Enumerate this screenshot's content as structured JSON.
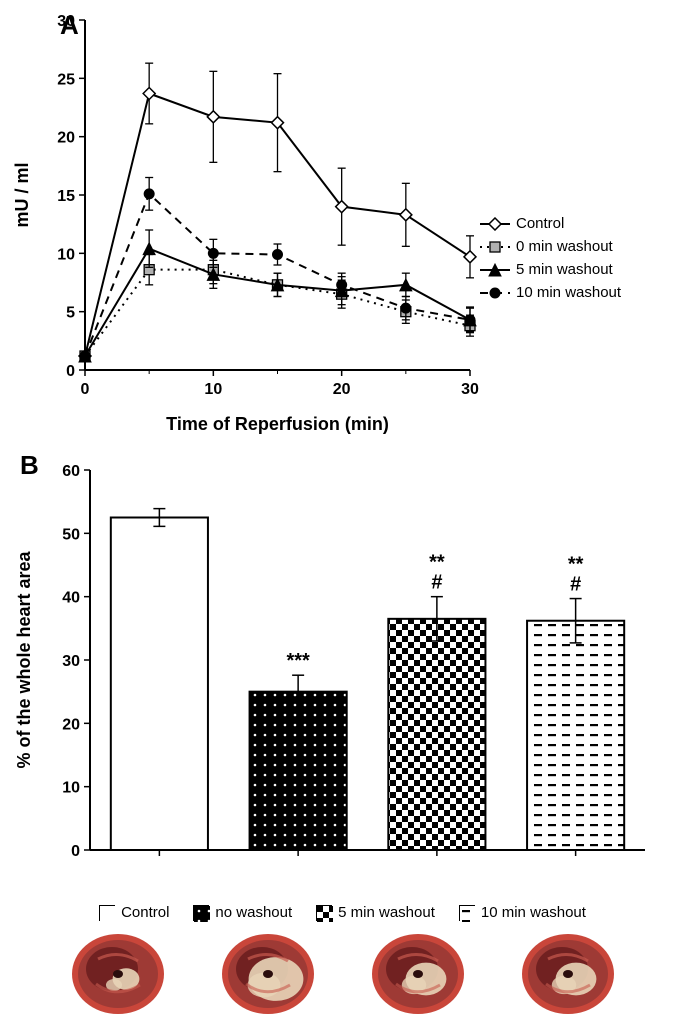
{
  "panelA": {
    "label": "A",
    "type": "line",
    "xlabel": "Time of Reperfusion (min)",
    "ylabel": "mU / ml",
    "xlim": [
      0,
      30
    ],
    "ylim": [
      0,
      30
    ],
    "xtick_step": 10,
    "xticks": [
      0,
      10,
      20,
      30
    ],
    "yticks": [
      0,
      5,
      10,
      15,
      20,
      25,
      30
    ],
    "label_fontsize": 18,
    "tick_fontsize": 16,
    "background_color": "#ffffff",
    "axis_color": "#000000",
    "series": [
      {
        "name": "Control",
        "marker": "diamond-open",
        "marker_fill": "#ffffff",
        "marker_stroke": "#000000",
        "line_style": "solid",
        "line_color": "#000000",
        "line_width": 2,
        "x": [
          0,
          5,
          10,
          15,
          20,
          25,
          30
        ],
        "y": [
          1.2,
          23.7,
          21.7,
          21.2,
          14.0,
          13.3,
          9.7
        ],
        "err": [
          0,
          2.6,
          3.9,
          4.2,
          3.3,
          2.7,
          1.8
        ]
      },
      {
        "name": "0 min washout",
        "marker": "square",
        "marker_fill": "#b0b0b0",
        "marker_stroke": "#000000",
        "line_style": "dotted",
        "line_color": "#000000",
        "line_width": 2,
        "x": [
          0,
          5,
          10,
          15,
          20,
          25,
          30
        ],
        "y": [
          1.2,
          8.6,
          8.6,
          7.3,
          6.5,
          5.0,
          3.8
        ],
        "err": [
          0,
          1.3,
          1.2,
          1.0,
          1.2,
          1.0,
          0.9
        ]
      },
      {
        "name": "5 min washout",
        "marker": "triangle",
        "marker_fill": "#000000",
        "marker_stroke": "#000000",
        "line_style": "solid",
        "line_color": "#000000",
        "line_width": 2,
        "x": [
          0,
          5,
          10,
          15,
          20,
          25,
          30
        ],
        "y": [
          1.2,
          10.4,
          8.2,
          7.3,
          6.8,
          7.3,
          4.3
        ],
        "err": [
          0,
          1.6,
          1.2,
          1.0,
          1.2,
          1.0,
          1.0
        ]
      },
      {
        "name": "10 min washout",
        "marker": "circle",
        "marker_fill": "#000000",
        "marker_stroke": "#000000",
        "line_style": "dashed",
        "line_color": "#000000",
        "line_width": 2,
        "x": [
          0,
          5,
          10,
          15,
          20,
          25,
          30
        ],
        "y": [
          1.2,
          15.1,
          10.0,
          9.9,
          7.3,
          5.3,
          4.3
        ],
        "err": [
          0,
          1.4,
          1.2,
          0.9,
          1.0,
          1.0,
          1.1
        ]
      }
    ]
  },
  "panelB": {
    "label": "B",
    "type": "bar",
    "ylabel": "% of the whole heart area",
    "ylim": [
      0,
      60
    ],
    "yticks": [
      0,
      10,
      20,
      30,
      40,
      50,
      60
    ],
    "label_fontsize": 18,
    "tick_fontsize": 16,
    "background_color": "#ffffff",
    "axis_color": "#000000",
    "bar_width": 0.7,
    "categories": [
      "Control",
      "no washout",
      "5 min washout",
      "10 min washout"
    ],
    "values": [
      52.5,
      25.0,
      36.5,
      36.2
    ],
    "err": [
      1.4,
      2.6,
      3.5,
      3.5
    ],
    "fills": [
      "white",
      "dots-white-on-black",
      "checker",
      "dash-rows"
    ],
    "annotations": [
      {
        "idx": 1,
        "lines": [
          "***"
        ]
      },
      {
        "idx": 2,
        "lines": [
          "**",
          "#"
        ]
      },
      {
        "idx": 3,
        "lines": [
          "**",
          "#"
        ]
      }
    ],
    "legend": [
      {
        "label": "Control",
        "swatch": "white"
      },
      {
        "label": "no washout",
        "swatch": "dots-white-on-black"
      },
      {
        "label": "5 min washout",
        "swatch": "checker"
      },
      {
        "label": "10 min washout",
        "swatch": "dash-rows"
      }
    ],
    "heart_colors": {
      "tissue_dark": "#6b1f1f",
      "tissue_mid": "#9e3a35",
      "tissue_light": "#c85a4f",
      "pale": "#e8d5b8",
      "rim": "#c9463a"
    }
  }
}
